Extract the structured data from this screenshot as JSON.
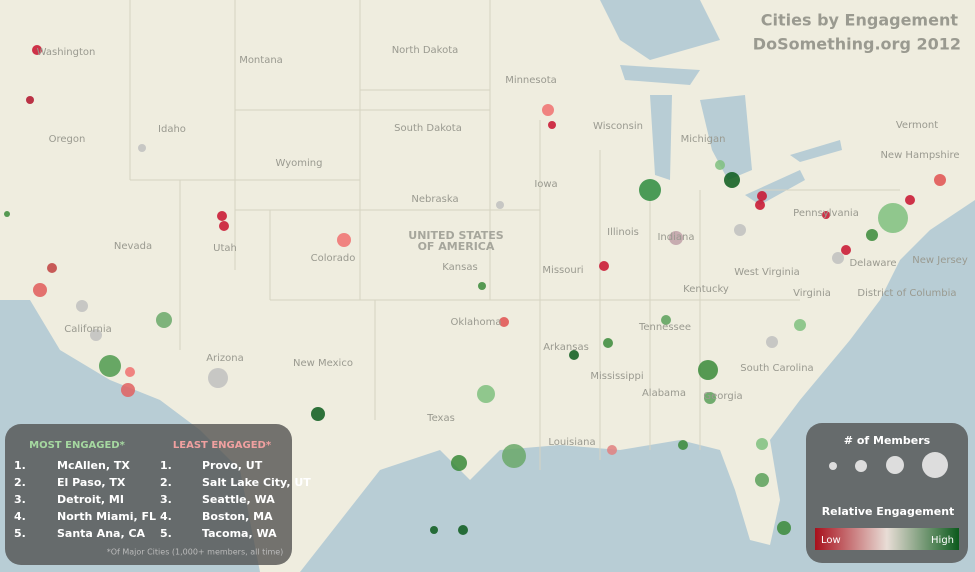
{
  "header": {
    "title": "Cities by Engagement",
    "subtitle": "DoSomething.org 2012"
  },
  "map": {
    "country_label": [
      "UNITED STATES",
      "OF AMERICA"
    ],
    "state_labels": [
      "Washington",
      "Montana",
      "North Dakota",
      "Minnesota",
      "Oregon",
      "Idaho",
      "South Dakota",
      "Wisconsin",
      "Michigan",
      "Vermont",
      "New Hampshire",
      "Wyoming",
      "Iowa",
      "Nebraska",
      "Pennsylvania",
      "Nevada",
      "Utah",
      "Colorado",
      "Illinois",
      "Indiana",
      "Kansas",
      "Missouri",
      "Delaware",
      "New Jersey",
      "West Virginia",
      "Kentucky",
      "Virginia",
      "District of Columbia",
      "California",
      "Oklahoma",
      "Tennessee",
      "Arkansas",
      "Arizona",
      "New Mexico",
      "South Carolina",
      "Mississippi",
      "Alabama",
      "Georgia",
      "Texas",
      "Louisiana"
    ]
  },
  "rankings": {
    "most_engaged": {
      "title": "MOST ENGAGED*",
      "rows": [
        {
          "rank": "1.",
          "city": "McAllen, TX"
        },
        {
          "rank": "2.",
          "city": "El Paso, TX"
        },
        {
          "rank": "3.",
          "city": "Detroit, MI"
        },
        {
          "rank": "4.",
          "city": "North Miami, FL"
        },
        {
          "rank": "5.",
          "city": "Santa Ana, CA"
        }
      ]
    },
    "least_engaged": {
      "title": "LEAST ENGAGED*",
      "rows": [
        {
          "rank": "1.",
          "city": "Provo, UT"
        },
        {
          "rank": "2.",
          "city": "Salt Lake City, UT"
        },
        {
          "rank": "3.",
          "city": "Seattle, WA"
        },
        {
          "rank": "4.",
          "city": "Boston, MA"
        },
        {
          "rank": "5.",
          "city": "Tacoma, WA"
        }
      ]
    },
    "footnote": "*Of Major Cities (1,000+ members, all time)"
  },
  "legend": {
    "size_title": "# of Members",
    "color_title": "Relative Engagement",
    "low": "Low",
    "high": "High"
  }
}
